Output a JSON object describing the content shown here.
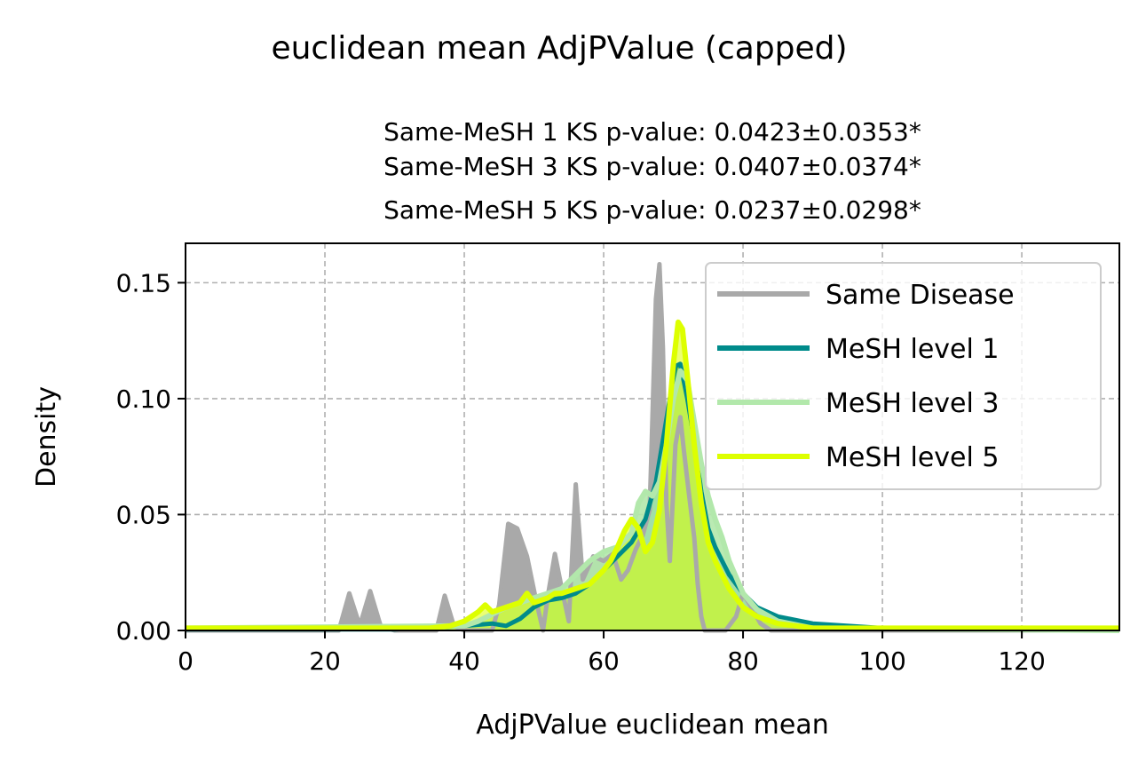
{
  "chart_data": {
    "type": "area",
    "title": "euclidean mean AdjPValue (capped)",
    "subtitle_lines": [
      "Same-MeSH 1 KS p-value: 0.0423±0.0353*",
      "Same-MeSH 3 KS p-value: 0.0407±0.0374*",
      "Same-MeSH 5 KS p-value: 0.0237±0.0298*"
    ],
    "xlabel": "AdjPValue euclidean mean",
    "ylabel": "Density",
    "xlim": [
      0,
      134
    ],
    "ylim": [
      0,
      0.167
    ],
    "xticks": [
      0,
      20,
      40,
      60,
      80,
      100,
      120
    ],
    "yticks": [
      0.0,
      0.05,
      0.1,
      0.15
    ],
    "ytick_labels": [
      "0.00",
      "0.05",
      "0.10",
      "0.15"
    ],
    "grid": true,
    "legend_position": "upper-right",
    "series": [
      {
        "name": "Same Disease",
        "color": "#a9a9a9",
        "x": [
          0,
          15,
          20,
          22,
          23.5,
          25,
          26.5,
          28,
          30,
          35,
          36,
          37.2,
          38.5,
          40,
          44,
          45,
          46.3,
          47.6,
          49,
          50.3,
          51.3,
          52,
          53,
          54,
          55,
          56,
          57,
          58.5,
          60,
          61.3,
          62.5,
          63.5,
          64.6,
          65.6,
          66.6,
          67.5,
          68,
          68.5,
          69,
          69.5,
          70.3,
          71,
          71.5,
          72.2,
          73,
          73.5,
          74,
          74.5,
          75,
          77.5,
          79,
          80,
          81,
          82.5,
          84,
          134
        ],
        "y": [
          0,
          0,
          0,
          0,
          0.016,
          0.002,
          0.017,
          0.002,
          0,
          0,
          0,
          0.015,
          0.002,
          0,
          0,
          0.011,
          0.046,
          0.044,
          0.032,
          0.013,
          0,
          0.015,
          0.033,
          0.018,
          0.004,
          0.063,
          0.022,
          0.032,
          0.03,
          0.033,
          0.022,
          0.026,
          0.035,
          0.041,
          0.052,
          0.143,
          0.158,
          0.122,
          0.055,
          0.03,
          0.08,
          0.092,
          0.078,
          0.06,
          0.04,
          0.02,
          0.006,
          0,
          0,
          0,
          0.006,
          0.016,
          0.011,
          0.003,
          0,
          0
        ]
      },
      {
        "name": "MeSH level 1",
        "color": "#008b8b",
        "x": [
          0,
          30,
          40,
          44,
          46,
          48,
          50,
          52,
          54,
          56,
          58,
          60,
          62,
          64,
          66,
          67.5,
          68.5,
          69.5,
          70.3,
          71,
          72,
          73,
          74,
          75,
          76,
          77,
          78,
          80,
          82,
          85,
          90,
          100,
          134
        ],
        "y": [
          0.0005,
          0.0005,
          0.002,
          0.003,
          0.002,
          0.005,
          0.01,
          0.013,
          0.014,
          0.016,
          0.02,
          0.026,
          0.032,
          0.038,
          0.048,
          0.064,
          0.082,
          0.1,
          0.114,
          0.115,
          0.1,
          0.082,
          0.06,
          0.044,
          0.036,
          0.03,
          0.024,
          0.016,
          0.01,
          0.006,
          0.003,
          0.001,
          0.0005
        ]
      },
      {
        "name": "MeSH level 3",
        "color": "#b2e8ab",
        "x": [
          0,
          40,
          42,
          44,
          46,
          48,
          50,
          52,
          54,
          56,
          58,
          60,
          62,
          64,
          65,
          66,
          67,
          68,
          69,
          70,
          71,
          72,
          73,
          74,
          75,
          76,
          77,
          78,
          80,
          82,
          85,
          90,
          134
        ],
        "y": [
          0.001,
          0.002,
          0.004,
          0.007,
          0.01,
          0.012,
          0.014,
          0.016,
          0.018,
          0.024,
          0.03,
          0.034,
          0.036,
          0.042,
          0.055,
          0.06,
          0.058,
          0.064,
          0.08,
          0.1,
          0.112,
          0.108,
          0.09,
          0.072,
          0.058,
          0.048,
          0.04,
          0.03,
          0.016,
          0.009,
          0.004,
          0.001,
          0
        ]
      },
      {
        "name": "MeSH level 5",
        "color": "#ddff00",
        "x": [
          0,
          35,
          38,
          40,
          42,
          43,
          44,
          46,
          48,
          49,
          50,
          52,
          53,
          54,
          56,
          58,
          60,
          61,
          62,
          63,
          64,
          65,
          66,
          67,
          68,
          69,
          70,
          70.7,
          71.3,
          72,
          73,
          74,
          75,
          76,
          77,
          78,
          80,
          82,
          85,
          90,
          134
        ],
        "y": [
          0.001,
          0.001,
          0.002,
          0.004,
          0.008,
          0.011,
          0.008,
          0.01,
          0.012,
          0.016,
          0.012,
          0.014,
          0.016,
          0.016,
          0.018,
          0.02,
          0.026,
          0.03,
          0.036,
          0.043,
          0.048,
          0.044,
          0.034,
          0.038,
          0.052,
          0.08,
          0.115,
          0.133,
          0.13,
          0.11,
          0.08,
          0.055,
          0.038,
          0.03,
          0.024,
          0.018,
          0.01,
          0.006,
          0.003,
          0.001,
          0.001
        ]
      }
    ],
    "fill_overlap_color": "#b2e05a"
  }
}
